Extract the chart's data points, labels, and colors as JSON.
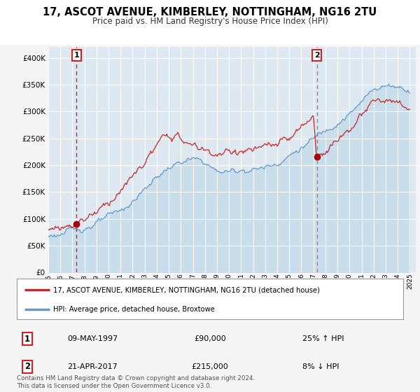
{
  "title": "17, ASCOT AVENUE, KIMBERLEY, NOTTINGHAM, NG16 2TU",
  "subtitle": "Price paid vs. HM Land Registry's House Price Index (HPI)",
  "legend_line1": "17, ASCOT AVENUE, KIMBERLEY, NOTTINGHAM, NG16 2TU (detached house)",
  "legend_line2": "HPI: Average price, detached house, Broxtowe",
  "annotation1_label": "1",
  "annotation1_date": "09-MAY-1997",
  "annotation1_price": "£90,000",
  "annotation1_hpi": "25% ↑ HPI",
  "annotation2_label": "2",
  "annotation2_date": "21-APR-2017",
  "annotation2_price": "£215,000",
  "annotation2_hpi": "8% ↓ HPI",
  "footer": "Contains HM Land Registry data © Crown copyright and database right 2024.\nThis data is licensed under the Open Government Licence v3.0.",
  "hpi_color": "#6699cc",
  "price_color": "#cc2222",
  "marker_color": "#aa0000",
  "vline1_color": "#cc2222",
  "vline2_color": "#888888",
  "bg_color": "#dde8f0",
  "fig_bg": "#f5f5f5",
  "ylim_min": 0,
  "ylim_max": 420000,
  "yticks": [
    0,
    50000,
    100000,
    150000,
    200000,
    250000,
    300000,
    350000,
    400000
  ],
  "sale1_year": 1997.35,
  "sale1_price": 90000,
  "sale2_year": 2017.28,
  "sale2_price": 215000,
  "hpi_anchors_y": [
    1995,
    1996,
    1997,
    1998,
    1999,
    2000,
    2001,
    2002,
    2003,
    2004,
    2005,
    2006,
    2007,
    2008,
    2009,
    2010,
    2011,
    2012,
    2013,
    2014,
    2015,
    2016,
    2017,
    2018,
    2019,
    2020,
    2021,
    2022,
    2023,
    2024,
    2025
  ],
  "hpi_anchors_v": [
    68000,
    72000,
    78000,
    84000,
    92000,
    102000,
    115000,
    132000,
    155000,
    178000,
    195000,
    205000,
    210000,
    205000,
    188000,
    188000,
    192000,
    192000,
    196000,
    205000,
    218000,
    232000,
    248000,
    265000,
    282000,
    295000,
    315000,
    345000,
    348000,
    348000,
    340000
  ],
  "price_anchors_y": [
    1995,
    1996,
    1997,
    1998,
    1999,
    2000,
    2001,
    2002,
    2003,
    2004,
    2005,
    2006,
    2007,
    2008,
    2009,
    2010,
    2011,
    2012,
    2013,
    2014,
    2015,
    2016,
    2017,
    2017.28,
    2018,
    2019,
    2020,
    2021,
    2022,
    2023,
    2024,
    2025
  ],
  "price_anchors_v": [
    80000,
    84000,
    90000,
    100000,
    115000,
    132000,
    152000,
    178000,
    205000,
    235000,
    258000,
    248000,
    235000,
    228000,
    220000,
    222000,
    228000,
    228000,
    232000,
    238000,
    248000,
    268000,
    290000,
    215000,
    228000,
    248000,
    268000,
    290000,
    318000,
    322000,
    312000,
    305000
  ]
}
